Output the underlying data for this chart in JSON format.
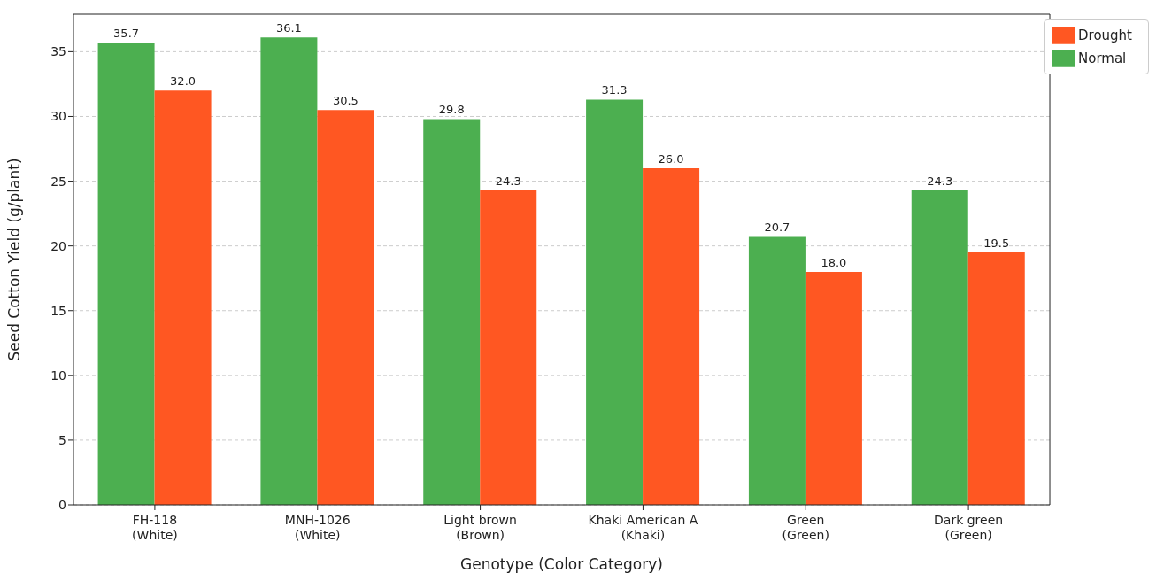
{
  "chart_data": {
    "type": "bar",
    "xlabel": "Genotype (Color Category)",
    "ylabel": "Seed Cotton Yield (g/plant)",
    "categories": [
      "FH-118\n(White)",
      "MNH-1026\n(White)",
      "Light brown\n(Brown)",
      "Khaki American A\n(Khaki)",
      "Green\n(Green)",
      "Dark green\n(Green)"
    ],
    "series": [
      {
        "name": "Normal",
        "color": "#4caf50",
        "values": [
          35.7,
          36.1,
          29.8,
          31.3,
          20.7,
          24.3
        ],
        "value_labels": [
          "35.7",
          "36.1",
          "29.8",
          "31.3",
          "20.7",
          "24.3"
        ]
      },
      {
        "name": "Drought",
        "color": "#ff5722",
        "values": [
          32.0,
          30.5,
          24.3,
          26.0,
          18.0,
          19.5
        ],
        "value_labels": [
          "32.0",
          "30.5",
          "24.3",
          "26.0",
          "18.0",
          "19.5"
        ]
      }
    ],
    "ylim": [
      0,
      37.9
    ],
    "yticks": [
      0,
      5,
      10,
      15,
      20,
      25,
      30,
      35
    ],
    "grid": "y",
    "legend": "top right"
  }
}
